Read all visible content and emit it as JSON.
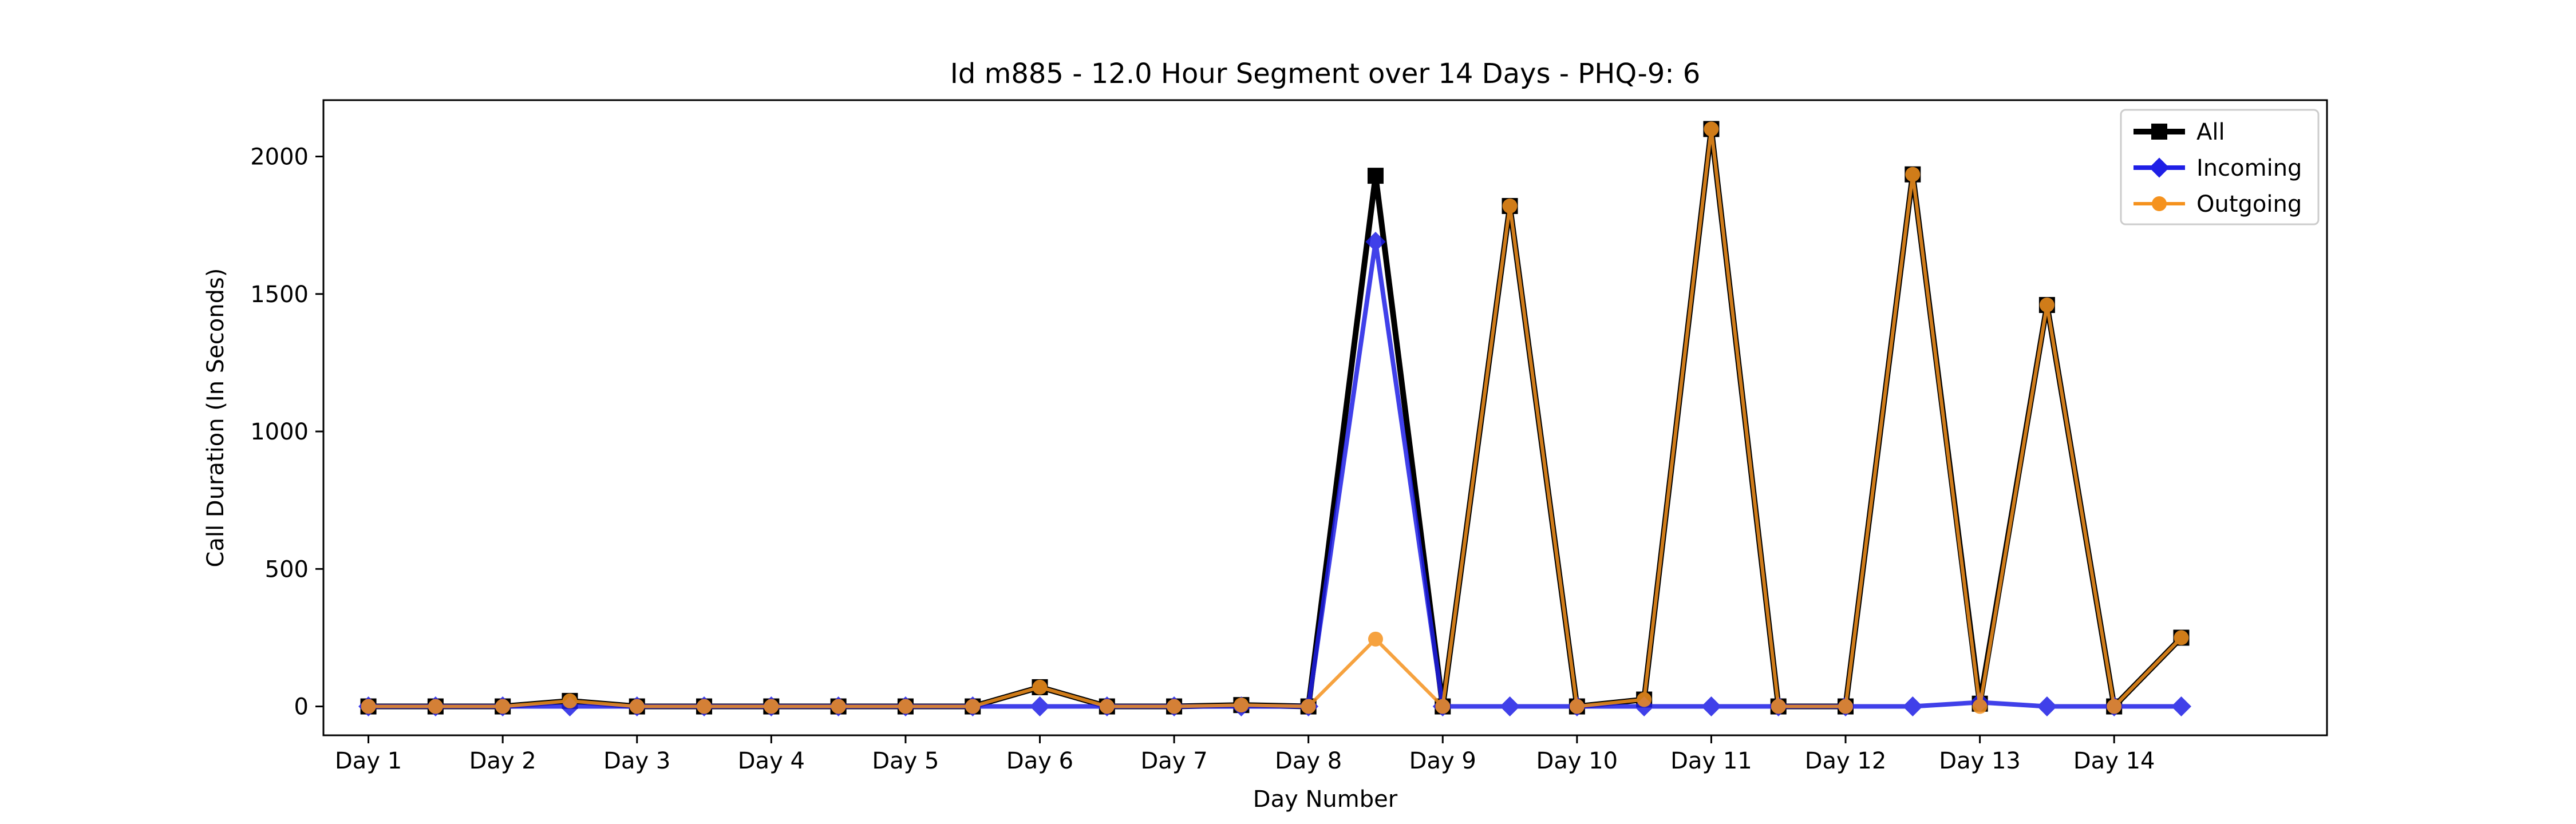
{
  "chart_data": {
    "type": "line",
    "title": "Id m885 - 12.0 Hour Segment over 14 Days - PHQ-9: 6",
    "xlabel": "Day Number",
    "ylabel": "Call Duration (In Seconds)",
    "x_tick_labels": [
      "Day 1",
      "Day 2",
      "Day 3",
      "Day 4",
      "Day 5",
      "Day 6",
      "Day 7",
      "Day 8",
      "Day 9",
      "Day 10",
      "Day 11",
      "Day 12",
      "Day 13",
      "Day 14"
    ],
    "y_ticks": [
      0,
      500,
      1000,
      1500,
      2000
    ],
    "ylim": [
      -105,
      2205
    ],
    "xlim": [
      -0.67,
      29.17
    ],
    "legend_position": "top-right",
    "grid": false,
    "x": [
      0,
      1,
      2,
      3,
      4,
      5,
      6,
      7,
      8,
      9,
      10,
      11,
      12,
      13,
      14,
      15,
      16,
      17,
      18,
      19,
      20,
      21,
      22,
      23,
      24,
      25,
      26,
      27
    ],
    "series": [
      {
        "name": "All",
        "color": "#000000",
        "marker": "square",
        "values": [
          0,
          0,
          0,
          20,
          0,
          0,
          0,
          0,
          0,
          0,
          70,
          0,
          0,
          5,
          0,
          1930,
          0,
          1820,
          0,
          25,
          2100,
          0,
          0,
          1935,
          10,
          1460,
          0,
          250
        ]
      },
      {
        "name": "Incoming",
        "color": "#1f1fe6",
        "marker": "diamond",
        "values": [
          0,
          0,
          0,
          0,
          0,
          0,
          0,
          0,
          0,
          0,
          0,
          0,
          0,
          0,
          0,
          1690,
          0,
          0,
          0,
          0,
          0,
          0,
          0,
          0,
          15,
          0,
          0,
          0
        ]
      },
      {
        "name": "Outgoing",
        "color": "#f5921e",
        "marker": "circle",
        "values": [
          0,
          0,
          0,
          20,
          0,
          0,
          0,
          0,
          0,
          0,
          70,
          0,
          0,
          5,
          0,
          245,
          0,
          1820,
          0,
          25,
          2100,
          0,
          0,
          1935,
          0,
          1460,
          0,
          250
        ]
      }
    ]
  }
}
